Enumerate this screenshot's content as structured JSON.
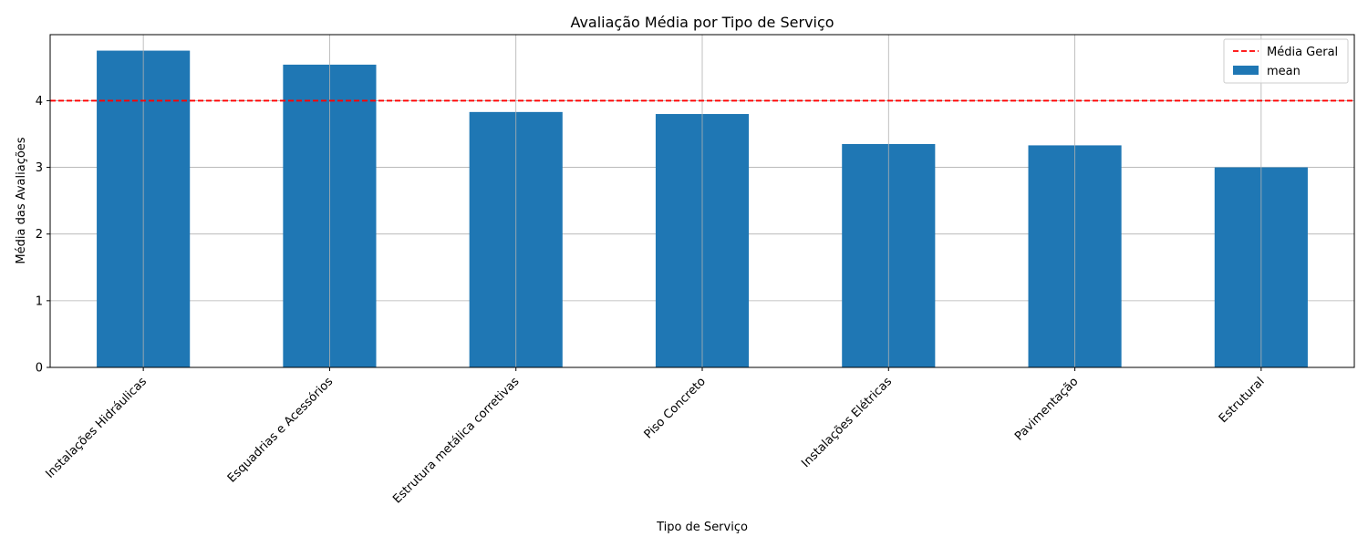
{
  "chart_data": {
    "type": "bar",
    "title": "Avaliação Média por Tipo de Serviço",
    "xlabel": "Tipo de Serviço",
    "ylabel": "Média das Avaliações",
    "categories": [
      "Instalações Hidráulicas",
      "Esquadrias e Acessórios",
      "Estrutura metálica corretivas",
      "Piso Concreto",
      "Instalações Elétricas",
      "Pavimentação",
      "Estrutural"
    ],
    "series": [
      {
        "name": "mean",
        "values": [
          4.75,
          4.54,
          3.83,
          3.8,
          3.35,
          3.33,
          3.0
        ]
      }
    ],
    "reference_line": {
      "name": "Média Geral",
      "value": 4.0,
      "color": "#ff0000",
      "style": "dashed"
    },
    "ylim": [
      0,
      4.99
    ],
    "yticks": [
      0,
      1,
      2,
      3,
      4
    ],
    "grid": true,
    "legend_position": "top-right",
    "bar_color": "#1f77b4"
  }
}
